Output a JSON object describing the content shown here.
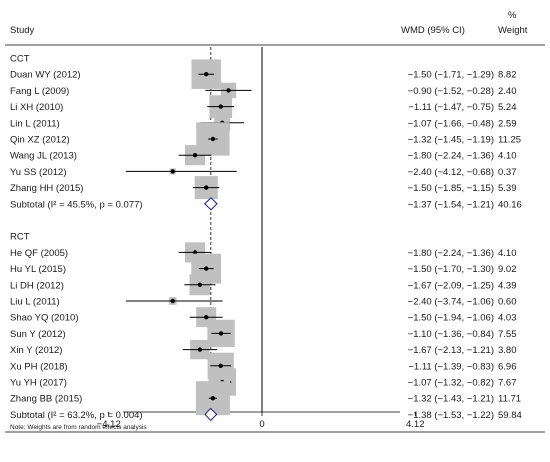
{
  "header": {
    "study_label": "Study",
    "effect_label": "WMD (95% CI)",
    "pct_label": "%",
    "weight_label": "Weight"
  },
  "footnote": "Note: Weights are from random effects analysis",
  "chart_data": {
    "type": "forest",
    "xlim": [
      -4.12,
      4.12
    ],
    "xticks": [
      {
        "value": -4.12,
        "label": "−4.12"
      },
      {
        "value": 0,
        "label": "0"
      },
      {
        "value": 4.12,
        "label": "4.12"
      }
    ],
    "overall_reference": -1.375,
    "groups": [
      {
        "name": "CCT",
        "studies": [
          {
            "study": "Duan WY (2012)",
            "est": -1.5,
            "lo": -1.71,
            "hi": -1.29,
            "weight": 8.82,
            "ci_text": "−1.50 (−1.71, −1.29)",
            "weight_text": "8.82"
          },
          {
            "study": "Fang L (2009)",
            "est": -0.9,
            "lo": -1.52,
            "hi": -0.28,
            "weight": 2.4,
            "ci_text": "−0.90 (−1.52, −0.28)",
            "weight_text": "2.40"
          },
          {
            "study": "Li XH (2010)",
            "est": -1.11,
            "lo": -1.47,
            "hi": -0.75,
            "weight": 5.24,
            "ci_text": "−1.11 (−1.47, −0.75)",
            "weight_text": "5.24"
          },
          {
            "study": "Lin L (2011)",
            "est": -1.07,
            "lo": -1.66,
            "hi": -0.48,
            "weight": 2.59,
            "ci_text": "−1.07 (−1.66, −0.48)",
            "weight_text": "2.59"
          },
          {
            "study": "Qin XZ (2012)",
            "est": -1.32,
            "lo": -1.45,
            "hi": -1.19,
            "weight": 11.25,
            "ci_text": "−1.32 (−1.45, −1.19)",
            "weight_text": "11.25"
          },
          {
            "study": "Wang JL (2013)",
            "est": -1.8,
            "lo": -2.24,
            "hi": -1.36,
            "weight": 4.1,
            "ci_text": "−1.80 (−2.24, −1.36)",
            "weight_text": "4.10"
          },
          {
            "study": "Yu SS (2012)",
            "est": -2.4,
            "lo": -4.12,
            "hi": -0.68,
            "weight": 0.37,
            "ci_text": "−2.40 (−4.12, −0.68)",
            "weight_text": "0.37"
          },
          {
            "study": "Zhang HH (2015)",
            "est": -1.5,
            "lo": -1.85,
            "hi": -1.15,
            "weight": 5.39,
            "ci_text": "−1.50 (−1.85, −1.15)",
            "weight_text": "5.39"
          }
        ],
        "subtotal": {
          "label": "Subtotal  (I² = 45.5%, p = 0.077)",
          "est": -1.37,
          "lo": -1.54,
          "hi": -1.21,
          "weight": 40.16,
          "ci_text": "−1.37 (−1.54, −1.21)",
          "weight_text": "40.16"
        }
      },
      {
        "name": "RCT",
        "studies": [
          {
            "study": "He QF (2005)",
            "est": -1.8,
            "lo": -2.24,
            "hi": -1.36,
            "weight": 4.1,
            "ci_text": "−1.80 (−2.24, −1.36)",
            "weight_text": "4.10"
          },
          {
            "study": "Hu YL (2015)",
            "est": -1.5,
            "lo": -1.7,
            "hi": -1.3,
            "weight": 9.02,
            "ci_text": "−1.50 (−1.70, −1.30)",
            "weight_text": "9.02"
          },
          {
            "study": "Li DH (2012)",
            "est": -1.67,
            "lo": -2.09,
            "hi": -1.25,
            "weight": 4.39,
            "ci_text": "−1.67 (−2.09, −1.25)",
            "weight_text": "4.39"
          },
          {
            "study": "Liu L (2011)",
            "est": -2.4,
            "lo": -3.74,
            "hi": -1.06,
            "weight": 0.6,
            "ci_text": "−2.40 (−3.74, −1.06)",
            "weight_text": "0.60"
          },
          {
            "study": "Shao YQ (2010)",
            "est": -1.5,
            "lo": -1.94,
            "hi": -1.06,
            "weight": 4.03,
            "ci_text": "−1.50 (−1.94, −1.06)",
            "weight_text": "4.03"
          },
          {
            "study": "Sun Y (2012)",
            "est": -1.1,
            "lo": -1.36,
            "hi": -0.84,
            "weight": 7.55,
            "ci_text": "−1.10 (−1.36, −0.84)",
            "weight_text": "7.55"
          },
          {
            "study": "Xin Y (2012)",
            "est": -1.67,
            "lo": -2.13,
            "hi": -1.21,
            "weight": 3.8,
            "ci_text": "−1.67 (−2.13, −1.21)",
            "weight_text": "3.80"
          },
          {
            "study": "Xu PH (2018)",
            "est": -1.11,
            "lo": -1.39,
            "hi": -0.83,
            "weight": 6.96,
            "ci_text": "−1.11 (−1.39, −0.83)",
            "weight_text": "6.96"
          },
          {
            "study": "Yu YH (2017)",
            "est": -1.07,
            "lo": -1.32,
            "hi": -0.82,
            "weight": 7.67,
            "ci_text": "−1.07 (−1.32, −0.82)",
            "weight_text": "7.67"
          },
          {
            "study": "Zhang BB (2015)",
            "est": -1.32,
            "lo": -1.43,
            "hi": -1.21,
            "weight": 11.71,
            "ci_text": "−1.32 (−1.43, −1.21)",
            "weight_text": "11.71"
          }
        ],
        "subtotal": {
          "label": "Subtotal  (I² = 63.2%, p = 0.004)",
          "est": -1.38,
          "lo": -1.53,
          "hi": -1.22,
          "weight": 59.84,
          "ci_text": "−1.38 (−1.53, −1.22)",
          "weight_text": "59.84"
        }
      }
    ],
    "colors": {
      "box": "#c0c0c0",
      "line": "#000000",
      "diamond_fill": "#ffffff",
      "diamond_stroke": "#3b3b8f",
      "dash": "#000000"
    }
  }
}
